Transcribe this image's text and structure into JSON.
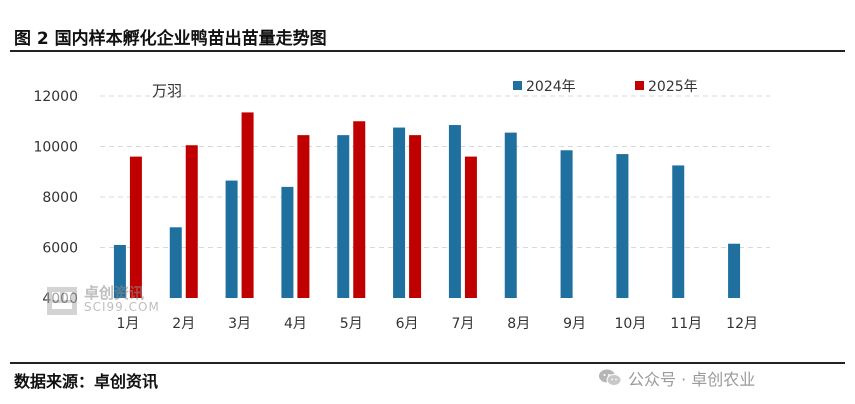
{
  "figure": {
    "title": "图 2  国内样本孵化企业鸭苗出苗量走势图",
    "source": "数据来源：卓创资讯",
    "credit": "公众号 · 卓创农业",
    "logo_cn": "卓创资讯",
    "logo_en": "SCI99.COM"
  },
  "colors": {
    "series_2024": "#1f6f9f",
    "series_2025": "#c00000",
    "grid": "#d9d9d9",
    "text": "#333333"
  },
  "chart_data": {
    "type": "bar",
    "title": "",
    "unit_label": "万羽",
    "xlabel": "",
    "ylabel": "",
    "categories": [
      "1月",
      "2月",
      "3月",
      "4月",
      "5月",
      "6月",
      "7月",
      "8月",
      "9月",
      "10月",
      "11月",
      "12月"
    ],
    "series": [
      {
        "name": "2024年",
        "values": [
          6100,
          6800,
          8650,
          8400,
          10450,
          10750,
          10850,
          10550,
          9850,
          9700,
          9250,
          6150
        ]
      },
      {
        "name": "2025年",
        "values": [
          9600,
          10050,
          11350,
          10450,
          11000,
          10450,
          9600,
          null,
          null,
          null,
          null,
          null
        ]
      }
    ],
    "ylim": [
      4000,
      12000
    ],
    "yticks": [
      4000,
      6000,
      8000,
      10000,
      12000
    ],
    "grid": true,
    "grid_style": "dashed",
    "legend_position": "top-right"
  }
}
